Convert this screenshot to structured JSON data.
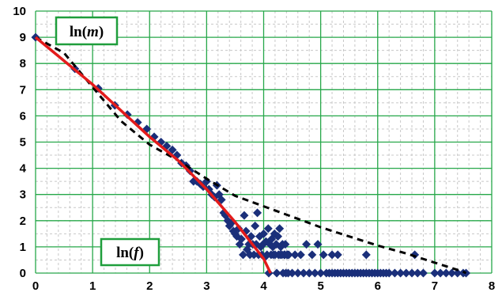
{
  "chart_data": {
    "type": "scatter",
    "title": "",
    "xlabel": "",
    "ylabel": "",
    "xlim": [
      0,
      8
    ],
    "ylim": [
      0,
      10
    ],
    "x_ticks": [
      0,
      1,
      2,
      3,
      4,
      5,
      6,
      7,
      8
    ],
    "y_ticks": [
      0,
      1,
      2,
      3,
      4,
      5,
      6,
      7,
      8,
      9,
      10
    ],
    "grid": "major and minor",
    "annotations": [
      {
        "id": "ln-m",
        "prefix": "ln(",
        "var": "m",
        "suffix": ")"
      },
      {
        "id": "ln-f",
        "prefix": "ln(",
        "var": "f",
        "suffix": ")"
      }
    ],
    "colors": {
      "points": "#1a2f7a",
      "solid_line": "#e31b1b",
      "dashed_line": "#000000",
      "major_grid": "#27a84a",
      "minor_grid": "#c8c8c8",
      "label_box_border": "#1f9e3c"
    },
    "series": [
      {
        "type": "scatter",
        "points": [
          [
            0,
            9
          ],
          [
            0.69,
            7.8
          ],
          [
            1.1,
            7.05
          ],
          [
            1.39,
            6.4
          ],
          [
            1.61,
            6.05
          ],
          [
            1.79,
            5.75
          ],
          [
            1.95,
            5.5
          ],
          [
            2.08,
            5.2
          ],
          [
            2.2,
            5.0
          ],
          [
            2.3,
            4.85
          ],
          [
            2.4,
            4.7
          ],
          [
            2.48,
            4.5
          ],
          [
            2.56,
            4.2
          ],
          [
            2.64,
            4.1
          ],
          [
            2.71,
            3.9
          ],
          [
            2.77,
            3.5
          ],
          [
            2.83,
            3.5
          ],
          [
            2.89,
            3.4
          ],
          [
            2.94,
            3.3
          ],
          [
            3.0,
            3.5
          ],
          [
            3.04,
            3.2
          ],
          [
            3.09,
            3.0
          ],
          [
            3.14,
            2.9
          ],
          [
            3.18,
            3.35
          ],
          [
            3.22,
            3.0
          ],
          [
            3.26,
            2.8
          ],
          [
            3.3,
            2.3
          ],
          [
            3.33,
            2.2
          ],
          [
            3.37,
            2.0
          ],
          [
            3.4,
            1.8
          ],
          [
            3.43,
            1.9
          ],
          [
            3.47,
            1.6
          ],
          [
            3.5,
            1.5
          ],
          [
            3.53,
            1.4
          ],
          [
            3.56,
            1.7
          ],
          [
            3.58,
            1.1
          ],
          [
            3.61,
            1.3
          ],
          [
            3.64,
            0.7
          ],
          [
            3.66,
            2.2
          ],
          [
            3.69,
            1.6
          ],
          [
            3.71,
            0.9
          ],
          [
            3.74,
            1.1
          ],
          [
            3.76,
            0.7
          ],
          [
            3.78,
            1.4
          ],
          [
            3.81,
            1.1
          ],
          [
            3.83,
            0.7
          ],
          [
            3.85,
            1.8
          ],
          [
            3.87,
            1.1
          ],
          [
            3.89,
            2.3
          ],
          [
            3.91,
            0.7
          ],
          [
            3.93,
            1.4
          ],
          [
            3.95,
            1.0
          ],
          [
            3.97,
            0.7
          ],
          [
            3.99,
            1.1
          ],
          [
            4.0,
            1.5
          ],
          [
            4.02,
            0.6
          ],
          [
            4.04,
            1.2
          ],
          [
            4.06,
            0.7
          ],
          [
            4.08,
            1.7
          ],
          [
            4.09,
            0.0
          ],
          [
            4.11,
            1.1
          ],
          [
            4.13,
            0.7
          ],
          [
            4.14,
            1.3
          ],
          [
            4.16,
            1.0
          ],
          [
            4.17,
            0.7
          ],
          [
            4.19,
            1.5
          ],
          [
            4.2,
            0.7
          ],
          [
            4.22,
            1.1
          ],
          [
            4.23,
            0.0
          ],
          [
            4.25,
            1.4
          ],
          [
            4.26,
            0.7
          ],
          [
            4.28,
            1.7
          ],
          [
            4.29,
            0.7
          ],
          [
            4.3,
            1.0
          ],
          [
            4.32,
            0.7
          ],
          [
            4.33,
            1.1
          ],
          [
            4.34,
            0.0
          ],
          [
            4.36,
            0.7
          ],
          [
            4.37,
            0.7
          ],
          [
            4.38,
            1.1
          ],
          [
            4.39,
            0.0
          ],
          [
            4.41,
            0.7
          ],
          [
            4.42,
            0.7
          ],
          [
            4.43,
            0.0
          ],
          [
            4.44,
            0.7
          ],
          [
            4.5,
            0.0
          ],
          [
            4.55,
            0.7
          ],
          [
            4.6,
            0.0
          ],
          [
            4.65,
            0.7
          ],
          [
            4.7,
            0.0
          ],
          [
            4.75,
            1.1
          ],
          [
            4.8,
            0.0
          ],
          [
            4.85,
            0.7
          ],
          [
            4.9,
            0.0
          ],
          [
            4.95,
            1.1
          ],
          [
            5.0,
            0.0
          ],
          [
            5.05,
            0.7
          ],
          [
            5.1,
            0.0
          ],
          [
            5.15,
            0.0
          ],
          [
            5.2,
            0.0
          ],
          [
            5.25,
            0.0
          ],
          [
            5.3,
            0.0
          ],
          [
            5.35,
            0.0
          ],
          [
            5.4,
            0.0
          ],
          [
            5.45,
            0.0
          ],
          [
            5.5,
            0.0
          ],
          [
            5.55,
            0.0
          ],
          [
            5.6,
            0.0
          ],
          [
            5.65,
            0.0
          ],
          [
            5.7,
            0.0
          ],
          [
            5.75,
            0.0
          ],
          [
            5.8,
            0.0
          ],
          [
            5.85,
            0.0
          ],
          [
            5.9,
            0.0
          ],
          [
            5.95,
            0.0
          ],
          [
            6.0,
            0.0
          ],
          [
            6.05,
            0.0
          ],
          [
            6.1,
            0.0
          ],
          [
            6.15,
            0.0
          ],
          [
            6.2,
            0.0
          ],
          [
            6.3,
            0.0
          ],
          [
            6.4,
            0.0
          ],
          [
            6.5,
            0.0
          ],
          [
            6.6,
            0.0
          ],
          [
            6.7,
            0.0
          ],
          [
            6.8,
            0.0
          ],
          [
            7.0,
            0.0
          ],
          [
            7.1,
            0.0
          ],
          [
            7.2,
            0.0
          ],
          [
            7.3,
            0.0
          ],
          [
            7.4,
            0.0
          ],
          [
            7.5,
            0.0
          ],
          [
            7.55,
            0.0
          ],
          [
            5.2,
            0.7
          ],
          [
            5.3,
            0.7
          ],
          [
            5.8,
            0.7
          ],
          [
            6.65,
            0.7
          ]
        ]
      },
      {
        "type": "line",
        "style": "solid",
        "points": [
          [
            0,
            9
          ],
          [
            0.5,
            8.1
          ],
          [
            1.0,
            7.2
          ],
          [
            1.5,
            6.2
          ],
          [
            2.0,
            5.2
          ],
          [
            2.5,
            4.3
          ],
          [
            3.0,
            3.2
          ],
          [
            3.5,
            1.95
          ],
          [
            4.0,
            0.55
          ],
          [
            4.12,
            0
          ]
        ]
      },
      {
        "type": "line",
        "style": "dashed",
        "points": [
          [
            0,
            9
          ],
          [
            0.5,
            8.4
          ],
          [
            1.0,
            7.1
          ],
          [
            1.5,
            5.8
          ],
          [
            2.0,
            4.9
          ],
          [
            2.5,
            4.3
          ],
          [
            3.0,
            3.6
          ],
          [
            3.5,
            2.95
          ],
          [
            4.0,
            2.55
          ],
          [
            4.5,
            2.15
          ],
          [
            5.0,
            1.75
          ],
          [
            5.5,
            1.4
          ],
          [
            6.0,
            1.05
          ],
          [
            6.5,
            0.75
          ],
          [
            7.0,
            0.4
          ],
          [
            7.5,
            0.05
          ],
          [
            7.55,
            0
          ]
        ]
      }
    ]
  }
}
